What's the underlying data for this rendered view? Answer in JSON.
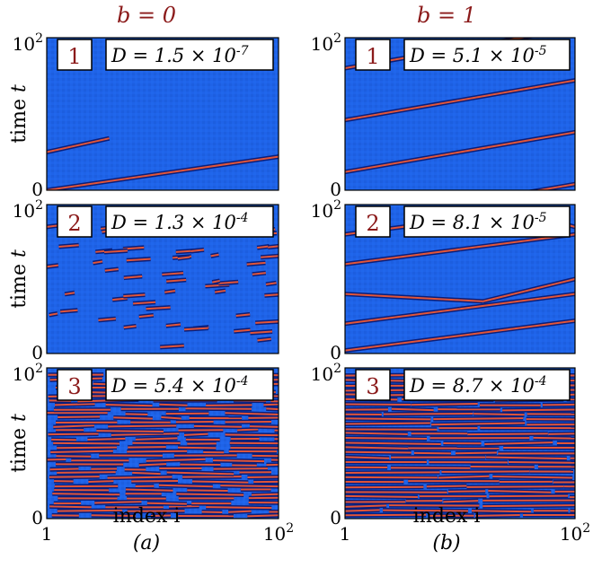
{
  "figure": {
    "column_titles": [
      "b = 0",
      "b = 1"
    ],
    "panel_captions": [
      "(a)",
      "(b)"
    ],
    "colors": {
      "background": "#1f63e8",
      "stripe_core": "#e0553a",
      "stripe_edge": "#0a1e7a",
      "title_color": "#8b1a1a",
      "box_border": "#000000"
    }
  },
  "chart_data": [
    {
      "type": "heatmap",
      "panel": "a",
      "row": 1,
      "badge": "1",
      "label": "D = 1.5 × 10^-7",
      "xlabel": "",
      "ylabel": "time t",
      "x_ticks": [
        "1",
        "10^2"
      ],
      "y_ticks": [
        "0",
        "10^2"
      ],
      "xlim": [
        1,
        100
      ],
      "ylim": [
        0,
        100
      ],
      "pattern": "few_long_diagonals",
      "count": 2
    },
    {
      "type": "heatmap",
      "panel": "b",
      "row": 1,
      "badge": "1",
      "label": "D = 5.1 × 10^-5",
      "xlabel": "",
      "ylabel": "",
      "x_ticks": [
        "1",
        "10^2"
      ],
      "y_ticks": [
        "0",
        "10^2"
      ],
      "xlim": [
        1,
        100
      ],
      "ylim": [
        0,
        100
      ],
      "pattern": "parallel_diagonals",
      "count": 4
    },
    {
      "type": "heatmap",
      "panel": "a",
      "row": 2,
      "badge": "2",
      "label": "D = 1.3 × 10^-4",
      "xlabel": "",
      "ylabel": "time t",
      "x_ticks": [
        "1",
        "10^2"
      ],
      "y_ticks": [
        "0",
        "10^2"
      ],
      "xlim": [
        1,
        100
      ],
      "ylim": [
        0,
        100
      ],
      "pattern": "scattered_segments",
      "count": 60
    },
    {
      "type": "heatmap",
      "panel": "b",
      "row": 2,
      "badge": "2",
      "label": "D = 8.1 × 10^-5",
      "xlabel": "",
      "ylabel": "",
      "x_ticks": [
        "1",
        "10^2"
      ],
      "y_ticks": [
        "0",
        "10^2"
      ],
      "xlim": [
        1,
        100
      ],
      "ylim": [
        0,
        100
      ],
      "pattern": "zigzag_diagonals",
      "count": 5
    },
    {
      "type": "heatmap",
      "panel": "a",
      "row": 3,
      "badge": "3",
      "label": "D = 5.4 × 10^-4",
      "xlabel": "index i",
      "ylabel": "time t",
      "x_ticks": [
        "1",
        "10^2"
      ],
      "y_ticks": [
        "0",
        "10^2"
      ],
      "xlim": [
        1,
        100
      ],
      "ylim": [
        0,
        100
      ],
      "pattern": "dense_segments",
      "count": 34
    },
    {
      "type": "heatmap",
      "panel": "b",
      "row": 3,
      "badge": "3",
      "label": "D = 8.7 × 10^-4",
      "xlabel": "index i",
      "ylabel": "",
      "x_ticks": [
        "1",
        "10^2"
      ],
      "y_ticks": [
        "0",
        "10^2"
      ],
      "xlim": [
        1,
        100
      ],
      "ylim": [
        0,
        100
      ],
      "pattern": "dense_lines",
      "count": 30
    }
  ]
}
